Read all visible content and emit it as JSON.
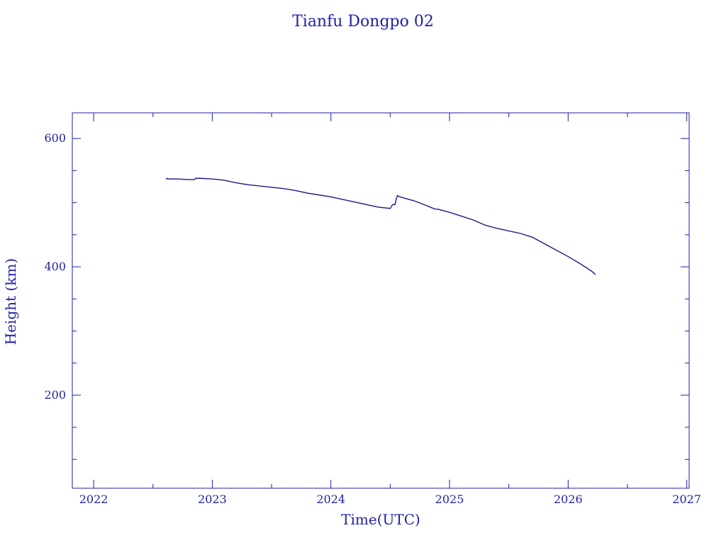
{
  "chart_data": {
    "type": "line",
    "title": "Tianfu Dongpo 02",
    "xlabel": "Time(UTC)",
    "ylabel": "Height (km)",
    "x_ticks": [
      2022,
      2023,
      2024,
      2025,
      2026,
      2027
    ],
    "y_ticks": [
      200,
      400,
      600
    ],
    "xlim": [
      2021.82,
      2027.02
    ],
    "ylim": [
      55,
      640
    ],
    "grid": false,
    "colors": {
      "axis": "#1f1fa8",
      "line": "#1a1a8c",
      "text": "#1f1fa8"
    },
    "series": [
      {
        "x": [
          2022.61,
          2022.62,
          2022.63,
          2022.7,
          2022.8,
          2022.85,
          2022.86,
          2022.9,
          2023.0,
          2023.1,
          2023.2,
          2023.3,
          2023.4,
          2023.5,
          2023.6,
          2023.7,
          2023.8,
          2023.9,
          2024.0,
          2024.1,
          2024.2,
          2024.3,
          2024.4,
          2024.5,
          2024.52,
          2024.54,
          2024.55,
          2024.56,
          2024.57,
          2024.6,
          2024.7,
          2024.8,
          2024.85,
          2024.88,
          2024.9,
          2025.0,
          2025.1,
          2025.2,
          2025.3,
          2025.4,
          2025.5,
          2025.6,
          2025.7,
          2025.8,
          2025.9,
          2026.0,
          2026.1,
          2026.2,
          2026.23
        ],
        "y": [
          536,
          538,
          537,
          537,
          536,
          536,
          538,
          538,
          537,
          535,
          531,
          528,
          526,
          524,
          522,
          519,
          515,
          512,
          509,
          505,
          501,
          497,
          493,
          491,
          497,
          497,
          505,
          511,
          510,
          508,
          503,
          496,
          492,
          490,
          490,
          485,
          479,
          473,
          465,
          460,
          456,
          452,
          446,
          436,
          426,
          416,
          405,
          393,
          388
        ]
      }
    ]
  }
}
